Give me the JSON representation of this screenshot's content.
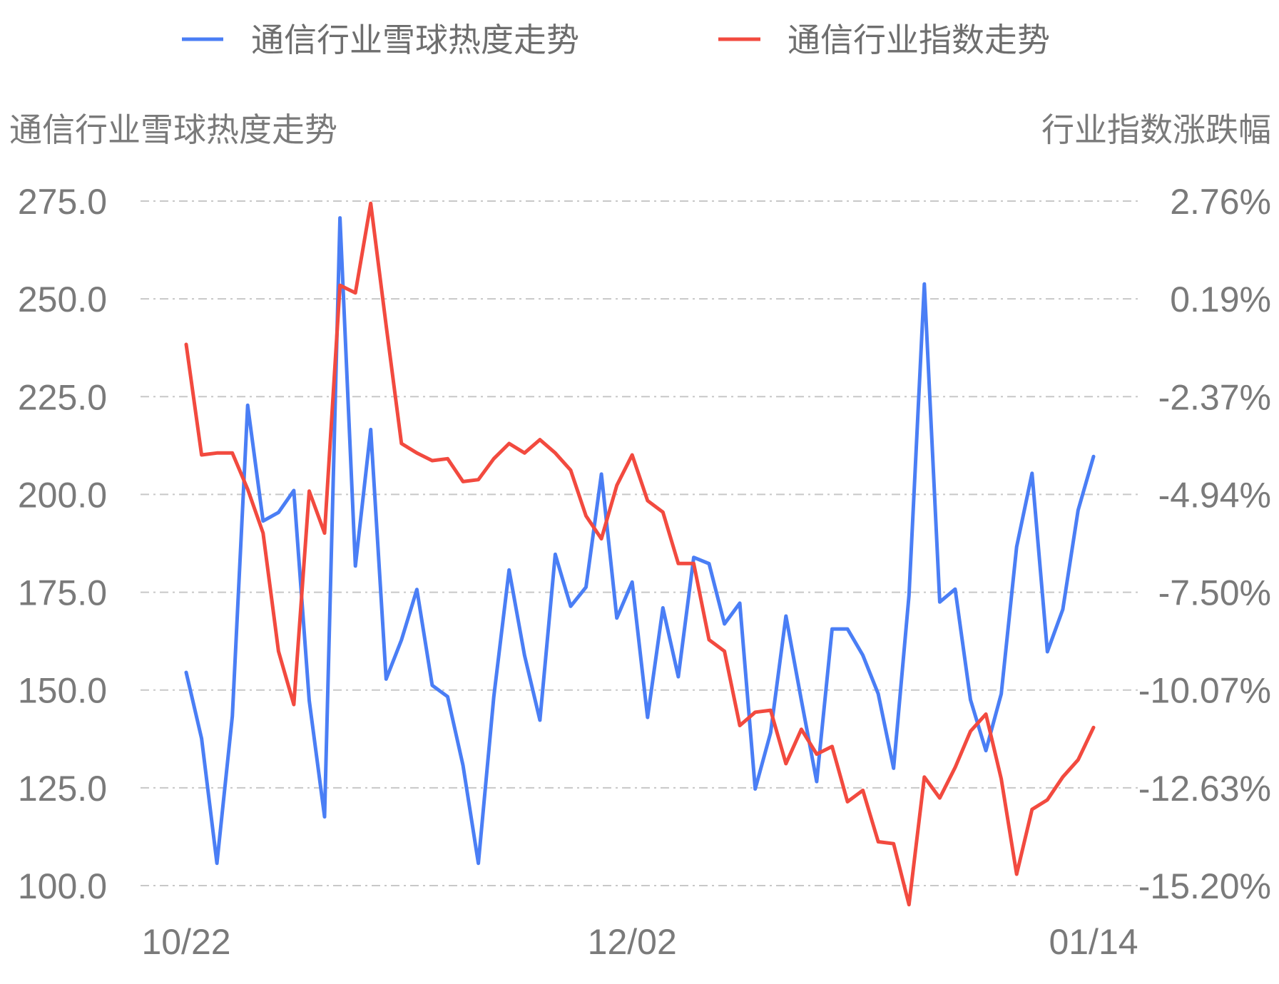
{
  "chart_data": {
    "type": "line",
    "legend": {
      "placement": "top-center"
    },
    "left_axis": {
      "label": "通信行业雪球热度走势",
      "ticks": [
        "275.0",
        "250.0",
        "225.0",
        "200.0",
        "175.0",
        "150.0",
        "125.0",
        "100.0"
      ],
      "ylim": [
        100,
        275
      ]
    },
    "right_axis": {
      "label": "行业指数涨跌幅",
      "ticks": [
        "2.76%",
        "0.19%",
        "-2.37%",
        "-4.94%",
        "-7.50%",
        "-10.07%",
        "-12.63%",
        "-15.20%"
      ],
      "ylim": [
        -15.2,
        2.76
      ]
    },
    "x_ticks": [
      {
        "label": "10/22",
        "index": 0
      },
      {
        "label": "12/02",
        "index": 29
      },
      {
        "label": "01/14",
        "index": 59
      }
    ],
    "grid": true,
    "series": [
      {
        "name": "通信行业雪球热度走势",
        "axis": "left",
        "color": "#4a7ef5",
        "values": [
          154.5,
          137.6,
          105.7,
          143.3,
          222.8,
          193.2,
          195.4,
          201.0,
          147.3,
          117.6,
          270.7,
          181.7,
          216.6,
          152.8,
          162.8,
          175.7,
          151.2,
          148.3,
          130.7,
          105.7,
          148.2,
          180.7,
          158.9,
          142.3,
          184.7,
          171.4,
          176.3,
          205.2,
          168.4,
          177.6,
          143.0,
          171.0,
          153.4,
          183.9,
          182.3,
          166.9,
          172.2,
          124.7,
          139.1,
          168.9,
          147.4,
          126.6,
          165.6,
          165.6,
          158.9,
          149.0,
          130.0,
          174.2,
          253.8,
          172.5,
          175.8,
          147.5,
          134.5,
          149.0,
          186.6,
          205.4,
          159.8,
          170.6,
          196.0,
          209.7
        ]
      },
      {
        "name": "通信行业指数走势",
        "axis": "right",
        "color": "#f24a3f",
        "values": [
          -1.0,
          -3.9,
          -3.85,
          -3.85,
          -4.8,
          -5.95,
          -9.05,
          -10.45,
          -4.85,
          -5.95,
          0.55,
          0.35,
          2.7,
          -0.5,
          -3.6,
          -3.85,
          -4.05,
          -4.0,
          -4.6,
          -4.55,
          -4.0,
          -3.6,
          -3.85,
          -3.5,
          -3.85,
          -4.3,
          -5.5,
          -6.1,
          -4.7,
          -3.9,
          -5.1,
          -5.4,
          -6.75,
          -6.75,
          -8.75,
          -9.05,
          -11.0,
          -10.65,
          -10.6,
          -12.0,
          -11.1,
          -11.75,
          -11.55,
          -13.0,
          -12.7,
          -14.05,
          -14.1,
          -15.7,
          -12.35,
          -12.9,
          -12.1,
          -11.15,
          -10.7,
          -12.4,
          -14.9,
          -13.2,
          -12.95,
          -12.35,
          -11.9,
          -11.05
        ]
      }
    ]
  }
}
